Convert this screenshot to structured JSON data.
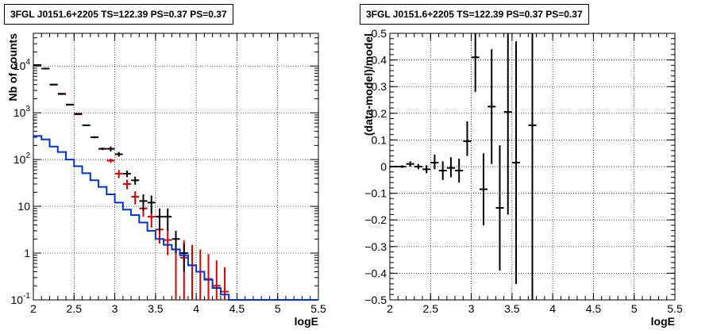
{
  "colors": {
    "data": "#000000",
    "model_total": "#dd0000",
    "model_source": "#0033cc"
  },
  "chart_data": [
    {
      "type": "line",
      "title": "3FGL J0151.6+2205 TS=122.39 PS=0.37 PS=0.37",
      "xlabel": "logE",
      "ylabel": "Nb of counts",
      "xlim": [
        2,
        5.5
      ],
      "ylim": [
        0.1,
        50000
      ],
      "y_scale": "log",
      "grid": true,
      "x_ticks": [
        "2",
        "2.5",
        "3",
        "3.5",
        "4",
        "4.5",
        "5",
        "5.5"
      ],
      "y_tick_labels": [
        {
          "value": 10000,
          "base": "10",
          "exp": "4"
        },
        {
          "value": 1000,
          "base": "10",
          "exp": "3"
        },
        {
          "value": 100,
          "base": "10",
          "exp": "2"
        },
        {
          "value": 10,
          "base": "10",
          "exp": ""
        },
        {
          "value": 1,
          "base": "1",
          "exp": ""
        },
        {
          "value": 0.1,
          "base": "10",
          "exp": "-1"
        }
      ],
      "series": [
        {
          "kind": "errorbar",
          "color": "model_total",
          "x": [
            2.05,
            2.15,
            2.25,
            2.35,
            2.45,
            2.55,
            2.65,
            2.75,
            2.85,
            2.95,
            3.05,
            3.15,
            3.25,
            3.35,
            3.45,
            3.55,
            3.65,
            3.75,
            3.85,
            3.95,
            4.05,
            4.15,
            4.25,
            4.35
          ],
          "y": [
            10500,
            8800,
            4000,
            2500,
            1480,
            930,
            540,
            300,
            170,
            95,
            50,
            30,
            16,
            9,
            6,
            3.2,
            1.9,
            1.2,
            0.8,
            0.55,
            0.4,
            0.28,
            0.2,
            0.15
          ],
          "ylow": [
            10300,
            8600,
            3900,
            2440,
            1440,
            900,
            525,
            290,
            160,
            85,
            40,
            23,
            11,
            6,
            3.5,
            1.6,
            0.9,
            0.1,
            0.1,
            0.1,
            0.1,
            0.1,
            0.1,
            0.1
          ],
          "yhigh": [
            10700,
            9000,
            4100,
            2560,
            1520,
            960,
            555,
            310,
            180,
            105,
            60,
            37,
            21,
            13,
            9,
            5.5,
            3.5,
            2.6,
            1.9,
            1.5,
            1.2,
            0.95,
            0.7,
            0.5
          ]
        },
        {
          "kind": "errorbar",
          "color": "data",
          "x": [
            2.05,
            2.15,
            2.25,
            2.35,
            2.45,
            2.55,
            2.65,
            2.75,
            2.85,
            2.95,
            3.05,
            3.15,
            3.25,
            3.35,
            3.45,
            3.55,
            3.65,
            3.75,
            3.85
          ],
          "y": [
            10500,
            8800,
            4000,
            2550,
            1500,
            950,
            540,
            300,
            170,
            170,
            130,
            50,
            36,
            13,
            12,
            6,
            6,
            2,
            1
          ],
          "ylow": [
            10300,
            8600,
            3900,
            2450,
            1460,
            910,
            520,
            285,
            160,
            150,
            115,
            42,
            29,
            8,
            7,
            3,
            3,
            1,
            0.4
          ],
          "yhigh": [
            10700,
            9000,
            4100,
            2650,
            1540,
            990,
            560,
            315,
            180,
            190,
            145,
            58,
            43,
            18,
            17,
            9,
            9,
            3,
            1.6
          ]
        },
        {
          "kind": "step",
          "color": "model_source",
          "x_edges": [
            2.0,
            2.1,
            2.2,
            2.3,
            2.4,
            2.5,
            2.6,
            2.7,
            2.8,
            2.9,
            3.0,
            3.1,
            3.2,
            3.3,
            3.4,
            3.5,
            3.6,
            3.7,
            3.8,
            3.9,
            4.0,
            4.1,
            4.2,
            4.3,
            4.4,
            5.5
          ],
          "values": [
            320,
            270,
            190,
            145,
            100,
            72,
            51,
            36,
            26,
            18,
            12,
            8.5,
            6.5,
            4.5,
            3,
            2,
            1.5,
            1.2,
            0.9,
            0.55,
            0.4,
            0.27,
            0.18,
            0.13,
            0.1
          ]
        }
      ]
    },
    {
      "type": "scatter",
      "title": "3FGL J0151.6+2205 TS=122.39 PS=0.37 PS=0.37",
      "xlabel": "logE",
      "ylabel": "(data-model)/model",
      "xlim": [
        2,
        5.5
      ],
      "ylim": [
        -0.5,
        0.5
      ],
      "grid": true,
      "x_ticks": [
        "2",
        "2.5",
        "3",
        "3.5",
        "4",
        "4.5",
        "5",
        "5.5"
      ],
      "y_ticks": [
        "0.5",
        "0.4",
        "0.3",
        "0.2",
        "0.1",
        "0",
        "−0.1",
        "−0.2",
        "−0.3",
        "−0.4",
        "−0.5"
      ],
      "series": [
        {
          "kind": "errorbar",
          "color": "data",
          "x": [
            2.05,
            2.15,
            2.25,
            2.35,
            2.45,
            2.55,
            2.65,
            2.75,
            2.85,
            2.95,
            3.05,
            3.15,
            3.25,
            3.35,
            3.45,
            3.55,
            3.75
          ],
          "y": [
            0.0,
            0.0,
            0.01,
            0.0,
            -0.01,
            0.015,
            -0.015,
            -0.005,
            -0.015,
            0.095,
            0.41,
            -0.085,
            0.225,
            -0.155,
            0.205,
            0.015,
            0.155
          ],
          "ylow": [
            -0.003,
            -0.005,
            0.0,
            -0.01,
            -0.025,
            -0.01,
            -0.05,
            -0.04,
            -0.06,
            0.04,
            0.28,
            -0.22,
            0.01,
            -0.39,
            -0.18,
            -0.44,
            -0.5
          ],
          "yhigh": [
            0.003,
            0.005,
            0.02,
            0.01,
            0.005,
            0.045,
            0.02,
            0.035,
            0.03,
            0.17,
            0.5,
            0.05,
            0.44,
            0.08,
            0.5,
            0.47,
            0.5
          ]
        }
      ]
    }
  ]
}
